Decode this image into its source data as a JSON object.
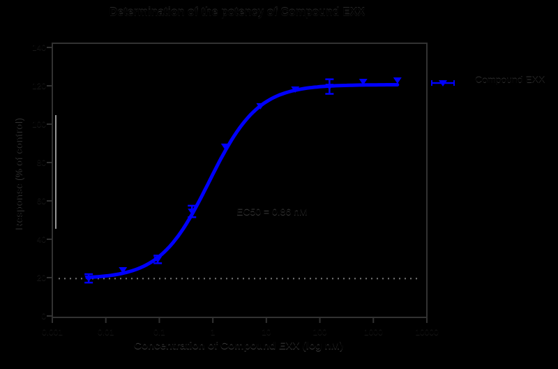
{
  "figure": {
    "background_color": "#000000",
    "frame_color": "#323232",
    "dotted_line_color": "#7a7a7a",
    "axis_white_segment_color": "#e6e6e6",
    "series_color": "#0000ff"
  },
  "chart_data": {
    "type": "line",
    "subtype": "dose-response sigmoid with scatter markers and error bars",
    "title": "Determination of the potency of Compound EXX",
    "xlabel": "Concentration of Compound EXX (log nM)",
    "ylabel": "Response (% of control)",
    "x_scale": "log",
    "xlim_log": [
      -3,
      4
    ],
    "x_tick_logs": [
      -3,
      -2,
      -1,
      0,
      1,
      2,
      3,
      4
    ],
    "x_tick_labels": [
      "0.001",
      "0.01",
      "0.1",
      "1",
      "10",
      "100",
      "1000",
      "10000"
    ],
    "y_ticks": [
      140,
      120,
      100,
      80,
      60,
      40,
      20,
      0
    ],
    "ylim": [
      -0.7,
      142.3
    ],
    "grid": false,
    "legend_position": "right-outside",
    "baseline_value": 19.5,
    "series": [
      {
        "name": "Compound EXX",
        "color": "#0000ff",
        "marker": "triangle-down",
        "points": [
          {
            "log_x": -2.32,
            "x_nM": 0.0048,
            "y": 19.6,
            "err": 2.2
          },
          {
            "log_x": -1.68,
            "x_nM": 0.021,
            "y": 24.0,
            "err": 0
          },
          {
            "log_x": -1.03,
            "x_nM": 0.093,
            "y": 29.5,
            "err": 2.0
          },
          {
            "log_x": -0.39,
            "x_nM": 0.41,
            "y": 54.5,
            "err": 3.0
          },
          {
            "log_x": 0.23,
            "x_nM": 1.7,
            "y": 88.4,
            "err": 0
          },
          {
            "log_x": 0.89,
            "x_nM": 7.8,
            "y": 109.5,
            "err": 0
          },
          {
            "log_x": 1.54,
            "x_nM": 35,
            "y": 118.2,
            "err": 0
          },
          {
            "log_x": 2.18,
            "x_nM": 151,
            "y": 119.6,
            "err": 3.8
          },
          {
            "log_x": 2.81,
            "x_nM": 646,
            "y": 122.2,
            "err": 0
          },
          {
            "log_x": 3.45,
            "x_nM": 2818,
            "y": 122.9,
            "err": 0
          }
        ]
      }
    ],
    "fit": {
      "model": "4PL sigmoid",
      "bottom": 19.4,
      "top": 120.6,
      "log_ec50": -0.07,
      "ec50_nM": 0.86,
      "hill_slope": 0.95,
      "curve_log_range": [
        -2.35,
        3.47
      ]
    },
    "annotation": "EC50 = 0.86 nM"
  },
  "legend": {
    "label": "Compound EXX"
  },
  "annotation": {
    "text": "EC50 = 0.86 nM"
  }
}
